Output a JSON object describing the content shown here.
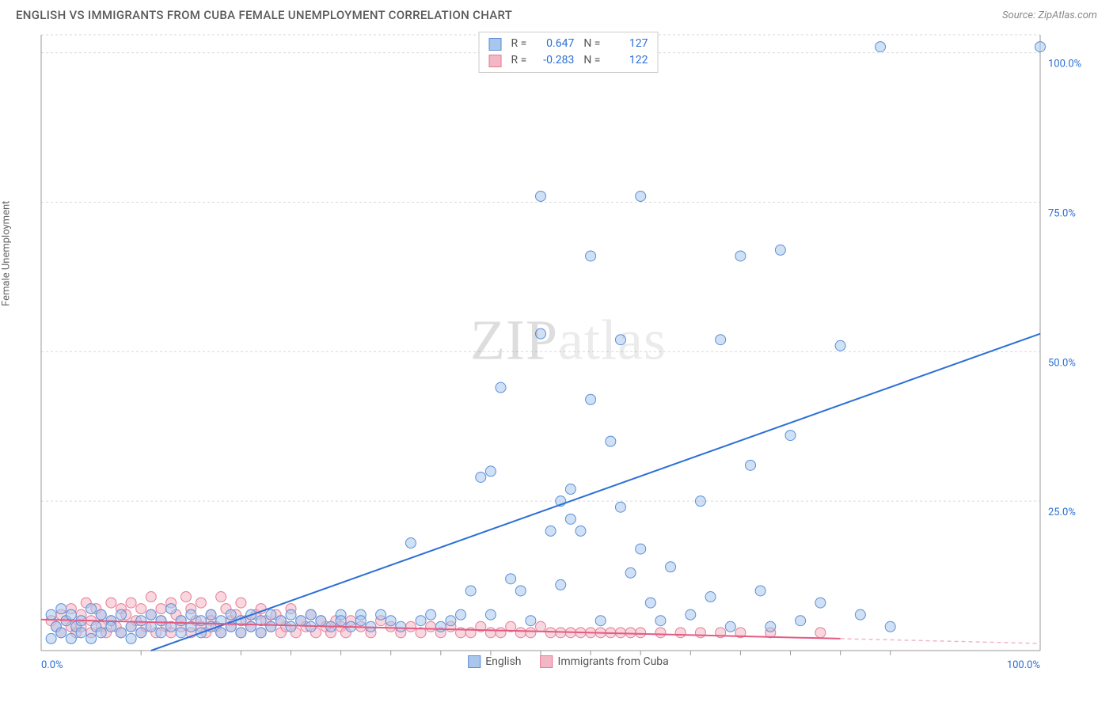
{
  "header": {
    "title": "ENGLISH VS IMMIGRANTS FROM CUBA FEMALE UNEMPLOYMENT CORRELATION CHART",
    "source": "Source: ZipAtlas.com"
  },
  "ylabel": "Female Unemployment",
  "watermark": {
    "bold": "ZIP",
    "rest": "atlas"
  },
  "chart": {
    "type": "scatter-with-regression",
    "background_color": "#ffffff",
    "grid_color": "#d9d9d9",
    "grid_dash": "3,3",
    "axis_line_color": "#999999",
    "xlim": [
      0,
      100
    ],
    "ylim": [
      0,
      103
    ],
    "x_ticks_major": [
      0,
      100
    ],
    "x_tick_labels": [
      "0.0%",
      "100.0%"
    ],
    "x_ticks_minor": [
      10,
      20,
      25,
      30,
      35,
      40,
      45,
      50,
      55,
      60,
      65,
      70,
      75,
      80,
      85
    ],
    "y_ticks": [
      25,
      50,
      75,
      100
    ],
    "y_tick_labels": [
      "25.0%",
      "50.0%",
      "75.0%",
      "100.0%"
    ],
    "tick_label_color": "#2b6fd6",
    "tick_fontsize": 13,
    "marker_radius": 6.5,
    "marker_stroke_width": 1,
    "line_width": 2,
    "series": [
      {
        "name": "English",
        "label": "English",
        "fill_color": "#a9c6ec",
        "stroke_color": "#5a8fd6",
        "fill_opacity": 0.55,
        "R": "0.647",
        "N": "127",
        "regression": {
          "x1": 11,
          "y1": 0,
          "x2": 100,
          "y2": 53,
          "dash_after_x": null
        },
        "points": [
          [
            1,
            6
          ],
          [
            1,
            2
          ],
          [
            1.5,
            4
          ],
          [
            2,
            7
          ],
          [
            2,
            3
          ],
          [
            2.5,
            5
          ],
          [
            3,
            2
          ],
          [
            3,
            6
          ],
          [
            3.5,
            4
          ],
          [
            4,
            3
          ],
          [
            4,
            5
          ],
          [
            5,
            7
          ],
          [
            5,
            2
          ],
          [
            5.5,
            4
          ],
          [
            6,
            6
          ],
          [
            6,
            3
          ],
          [
            7,
            5
          ],
          [
            7,
            4
          ],
          [
            8,
            6
          ],
          [
            8,
            3
          ],
          [
            9,
            4
          ],
          [
            9,
            2
          ],
          [
            10,
            5
          ],
          [
            10,
            3
          ],
          [
            11,
            6
          ],
          [
            11,
            4
          ],
          [
            12,
            3
          ],
          [
            12,
            5
          ],
          [
            13,
            7
          ],
          [
            13,
            4
          ],
          [
            14,
            3
          ],
          [
            14,
            5
          ],
          [
            15,
            6
          ],
          [
            15,
            4
          ],
          [
            16,
            3
          ],
          [
            16,
            5
          ],
          [
            17,
            4
          ],
          [
            17,
            6
          ],
          [
            18,
            3
          ],
          [
            18,
            5
          ],
          [
            19,
            6
          ],
          [
            19,
            4
          ],
          [
            20,
            3
          ],
          [
            20,
            5
          ],
          [
            21,
            6
          ],
          [
            21,
            4
          ],
          [
            22,
            5
          ],
          [
            22,
            3
          ],
          [
            23,
            6
          ],
          [
            23,
            4
          ],
          [
            24,
            5
          ],
          [
            25,
            4
          ],
          [
            25,
            6
          ],
          [
            26,
            5
          ],
          [
            27,
            4
          ],
          [
            27,
            6
          ],
          [
            28,
            5
          ],
          [
            29,
            4
          ],
          [
            30,
            6
          ],
          [
            30,
            5
          ],
          [
            31,
            4
          ],
          [
            32,
            6
          ],
          [
            32,
            5
          ],
          [
            33,
            4
          ],
          [
            34,
            6
          ],
          [
            35,
            5
          ],
          [
            36,
            4
          ],
          [
            37,
            18
          ],
          [
            38,
            5
          ],
          [
            39,
            6
          ],
          [
            40,
            4
          ],
          [
            41,
            5
          ],
          [
            42,
            6
          ],
          [
            43,
            10
          ],
          [
            44,
            29
          ],
          [
            45,
            6
          ],
          [
            45,
            30
          ],
          [
            46,
            44
          ],
          [
            47,
            12
          ],
          [
            48,
            10
          ],
          [
            49,
            5
          ],
          [
            50,
            53
          ],
          [
            50,
            76
          ],
          [
            51,
            20
          ],
          [
            52,
            11
          ],
          [
            52,
            25
          ],
          [
            53,
            22
          ],
          [
            53,
            27
          ],
          [
            54,
            20
          ],
          [
            55,
            42
          ],
          [
            55,
            66
          ],
          [
            56,
            5
          ],
          [
            57,
            35
          ],
          [
            58,
            24
          ],
          [
            58,
            52
          ],
          [
            59,
            13
          ],
          [
            60,
            17
          ],
          [
            60,
            76
          ],
          [
            61,
            8
          ],
          [
            62,
            5
          ],
          [
            63,
            14
          ],
          [
            65,
            6
          ],
          [
            66,
            25
          ],
          [
            67,
            9
          ],
          [
            68,
            52
          ],
          [
            69,
            4
          ],
          [
            70,
            66
          ],
          [
            71,
            31
          ],
          [
            72,
            10
          ],
          [
            73,
            4
          ],
          [
            74,
            67
          ],
          [
            75,
            36
          ],
          [
            76,
            5
          ],
          [
            78,
            8
          ],
          [
            80,
            51
          ],
          [
            82,
            6
          ],
          [
            84,
            101
          ],
          [
            85,
            4
          ],
          [
            100,
            101
          ]
        ]
      },
      {
        "name": "Immigrants from Cuba",
        "label": "Immigrants from Cuba",
        "fill_color": "#f3b6c4",
        "stroke_color": "#e77a97",
        "fill_opacity": 0.55,
        "R": "-0.283",
        "N": "122",
        "regression": {
          "x1": 0,
          "y1": 5.2,
          "x2": 80,
          "y2": 2.0,
          "dash_after_x": 80,
          "x3": 100,
          "y3": 1.2
        },
        "points": [
          [
            1,
            5
          ],
          [
            1.5,
            4
          ],
          [
            2,
            6
          ],
          [
            2,
            3
          ],
          [
            2.5,
            5
          ],
          [
            3,
            4
          ],
          [
            3,
            7
          ],
          [
            3.5,
            3
          ],
          [
            4,
            6
          ],
          [
            4,
            4
          ],
          [
            4.5,
            8
          ],
          [
            5,
            3
          ],
          [
            5,
            5
          ],
          [
            5.5,
            7
          ],
          [
            6,
            4
          ],
          [
            6,
            6
          ],
          [
            6.5,
            3
          ],
          [
            7,
            8
          ],
          [
            7,
            5
          ],
          [
            7.5,
            4
          ],
          [
            8,
            7
          ],
          [
            8,
            3
          ],
          [
            8.5,
            6
          ],
          [
            9,
            4
          ],
          [
            9,
            8
          ],
          [
            9.5,
            5
          ],
          [
            10,
            3
          ],
          [
            10,
            7
          ],
          [
            10.5,
            4
          ],
          [
            11,
            6
          ],
          [
            11,
            9
          ],
          [
            11.5,
            3
          ],
          [
            12,
            5
          ],
          [
            12,
            7
          ],
          [
            12.5,
            4
          ],
          [
            13,
            8
          ],
          [
            13,
            3
          ],
          [
            13.5,
            6
          ],
          [
            14,
            5
          ],
          [
            14,
            4
          ],
          [
            14.5,
            9
          ],
          [
            15,
            3
          ],
          [
            15,
            7
          ],
          [
            15.5,
            5
          ],
          [
            16,
            4
          ],
          [
            16,
            8
          ],
          [
            16.5,
            3
          ],
          [
            17,
            6
          ],
          [
            17,
            5
          ],
          [
            17.5,
            4
          ],
          [
            18,
            9
          ],
          [
            18,
            3
          ],
          [
            18.5,
            7
          ],
          [
            19,
            5
          ],
          [
            19,
            4
          ],
          [
            19.5,
            6
          ],
          [
            20,
            3
          ],
          [
            20,
            8
          ],
          [
            20.5,
            5
          ],
          [
            21,
            4
          ],
          [
            21.5,
            6
          ],
          [
            22,
            3
          ],
          [
            22,
            7
          ],
          [
            22.5,
            5
          ],
          [
            23,
            4
          ],
          [
            23.5,
            6
          ],
          [
            24,
            3
          ],
          [
            24,
            5
          ],
          [
            24.5,
            4
          ],
          [
            25,
            7
          ],
          [
            25.5,
            3
          ],
          [
            26,
            5
          ],
          [
            26.5,
            4
          ],
          [
            27,
            6
          ],
          [
            27.5,
            3
          ],
          [
            28,
            5
          ],
          [
            28.5,
            4
          ],
          [
            29,
            3
          ],
          [
            29.5,
            5
          ],
          [
            30,
            4
          ],
          [
            30.5,
            3
          ],
          [
            31,
            5
          ],
          [
            32,
            4
          ],
          [
            33,
            3
          ],
          [
            34,
            5
          ],
          [
            35,
            4
          ],
          [
            36,
            3
          ],
          [
            37,
            4
          ],
          [
            38,
            3
          ],
          [
            39,
            4
          ],
          [
            40,
            3
          ],
          [
            41,
            4
          ],
          [
            42,
            3
          ],
          [
            43,
            3
          ],
          [
            44,
            4
          ],
          [
            45,
            3
          ],
          [
            46,
            3
          ],
          [
            47,
            4
          ],
          [
            48,
            3
          ],
          [
            49,
            3
          ],
          [
            50,
            4
          ],
          [
            51,
            3
          ],
          [
            52,
            3
          ],
          [
            53,
            3
          ],
          [
            54,
            3
          ],
          [
            55,
            3
          ],
          [
            56,
            3
          ],
          [
            57,
            3
          ],
          [
            58,
            3
          ],
          [
            59,
            3
          ],
          [
            60,
            3
          ],
          [
            62,
            3
          ],
          [
            64,
            3
          ],
          [
            66,
            3
          ],
          [
            68,
            3
          ],
          [
            70,
            3
          ],
          [
            73,
            3
          ],
          [
            78,
            3
          ]
        ]
      }
    ]
  },
  "legend_stats": {
    "r_label": "R =",
    "n_label": "N ="
  },
  "bottom_legend": {
    "items": [
      "English",
      "Immigrants from Cuba"
    ]
  }
}
